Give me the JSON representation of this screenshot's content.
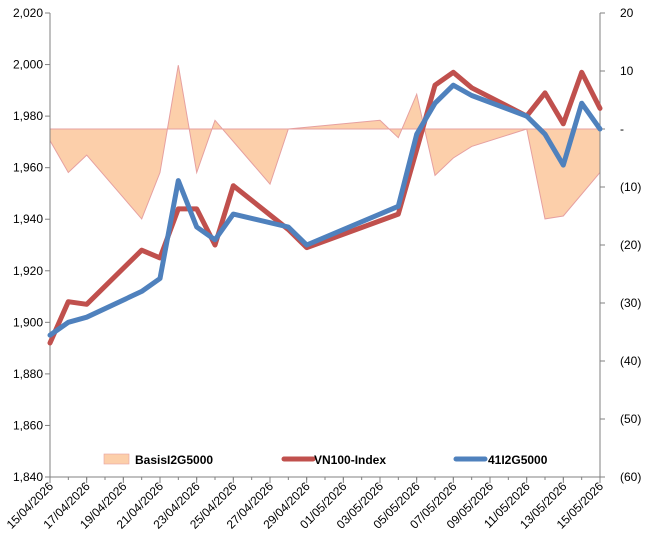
{
  "chart_data": {
    "type": "line",
    "x": [
      "15/04/2026",
      "16/04/2026",
      "17/04/2026",
      "20/04/2026",
      "21/04/2026",
      "22/04/2026",
      "23/04/2026",
      "24/04/2026",
      "25/04/2026",
      "28/04/2026",
      "29/04/2026",
      "04/05/2026",
      "05/05/2026",
      "06/05/2026",
      "07/05/2026",
      "08/05/2026",
      "11/05/2026",
      "12/05/2026",
      "13/05/2026",
      "14/05/2026",
      "15/05/2026"
    ],
    "x_tick_labels": [
      "15/04/2026",
      "17/04/2026",
      "19/04/2026",
      "21/04/2026",
      "23/04/2026",
      "25/04/2026",
      "27/04/2026",
      "29/04/2026",
      "01/05/2026",
      "03/05/2026",
      "05/05/2026",
      "07/05/2026",
      "09/05/2026",
      "11/05/2026",
      "13/05/2026",
      "15/05/2026"
    ],
    "y_left": {
      "ylim": [
        1840,
        2020
      ],
      "ticks": [
        "1,840",
        "1,860",
        "1,880",
        "1,900",
        "1,920",
        "1,940",
        "1,960",
        "1,980",
        "2,000",
        "2,020"
      ]
    },
    "y_right": {
      "ylim": [
        -60,
        20
      ],
      "ticks": [
        "(60)",
        "(50)",
        "(40)",
        "(30)",
        "(20)",
        "(10)",
        "-",
        "10",
        "20"
      ]
    },
    "series": [
      {
        "name": "BasisI2G5000",
        "chart": "area",
        "axis": "right",
        "color": "#FCCFAA",
        "edge_color": "#E6A0A0",
        "x": [
          "15/04/2026",
          "15/04/2026",
          "16/04/2026",
          "17/04/2026",
          "20/04/2026",
          "21/04/2026",
          "22/04/2026",
          "23/04/2026",
          "24/04/2026",
          "27/04/2026",
          "28/04/2026",
          "03/05/2026",
          "04/05/2026",
          "05/05/2026",
          "06/05/2026",
          "07/05/2026",
          "08/05/2026",
          "11/05/2026",
          "11/05/2026",
          "12/05/2026",
          "13/05/2026",
          "15/05/2026"
        ],
        "values": [
          2.5,
          -2,
          -7.5,
          -4.5,
          -15.5,
          -7.5,
          11,
          -7.5,
          1.5,
          -9.5,
          0,
          1.5,
          -1.5,
          6,
          -8,
          -5,
          -3,
          0,
          0,
          -15.5,
          -15,
          -7.5
        ]
      },
      {
        "name": "VN100-Index",
        "axis": "left",
        "color": "#C0504D",
        "values": [
          1892,
          1908,
          1907,
          1928,
          1925,
          1944,
          1944,
          1930,
          1953,
          1936,
          1929,
          1942,
          1967,
          1992,
          1997,
          1991,
          1980,
          1989,
          1977,
          1997,
          1983
        ]
      },
      {
        "name": "41I2G5000",
        "axis": "left",
        "color": "#4F81BD",
        "values": [
          1895,
          1900,
          1902,
          1912,
          1917,
          1955,
          1937,
          1932,
          1942,
          1937,
          1930,
          1945,
          1973,
          1985,
          1992,
          1988,
          1980,
          1973,
          1961,
          1985,
          1975
        ]
      }
    ],
    "legend": {
      "position": "bottom-inside"
    },
    "grid": false
  }
}
